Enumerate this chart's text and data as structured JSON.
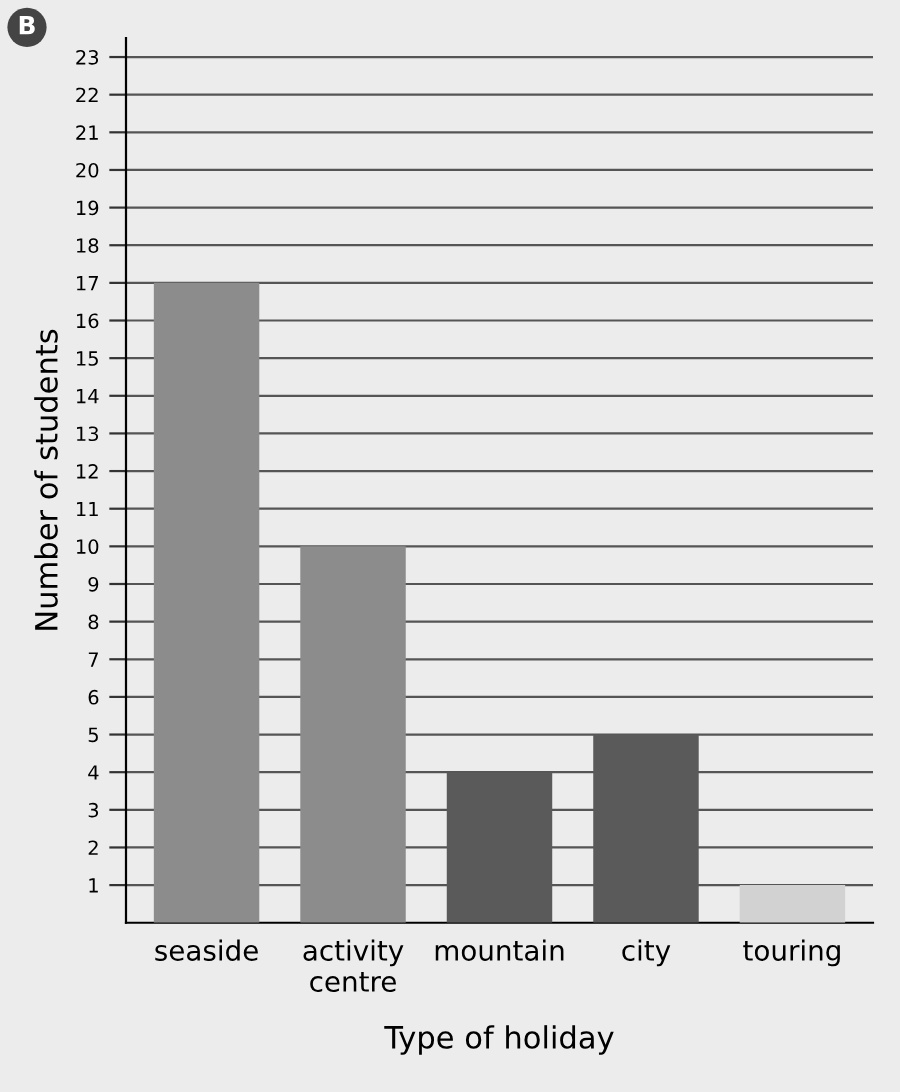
{
  "chart_data": {
    "type": "bar",
    "xlabel": "Type of holiday",
    "ylabel": "Number of students",
    "annotations": [
      "B"
    ],
    "categories": [
      "seaside",
      "activity\ncentre",
      "mountain",
      "city",
      "touring"
    ],
    "values": [
      17,
      10,
      4,
      5,
      1
    ],
    "colors": [
      "#8c8c8c",
      "#8c8c8c",
      "#5a5a5a",
      "#5a5a5a",
      "#d2d2d2"
    ],
    "ylim": [
      0,
      23.5
    ],
    "yticks": [
      1,
      2,
      3,
      4,
      5,
      6,
      7,
      8,
      9,
      10,
      11,
      12,
      13,
      14,
      15,
      16,
      17,
      18,
      19,
      20,
      21,
      22,
      23
    ],
    "grid": "y",
    "legend": false
  }
}
